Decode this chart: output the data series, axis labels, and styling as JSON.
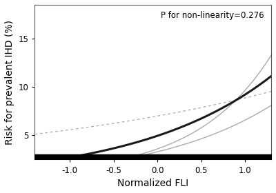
{
  "title_annotation": "P for non-linearity=0.276",
  "xlabel": "Normalized FLI",
  "ylabel": "Risk for prevalent IHD (%)",
  "xlim": [
    -1.4,
    1.3
  ],
  "ylim": [
    2.5,
    18.5
  ],
  "xticks": [
    -1.0,
    -0.5,
    0.0,
    0.5,
    1.0
  ],
  "yticks": [
    5,
    10,
    15
  ],
  "background_color": "#ffffff",
  "annotation_fontsize": 8.5,
  "axis_label_fontsize": 10,
  "tick_fontsize": 8.5
}
